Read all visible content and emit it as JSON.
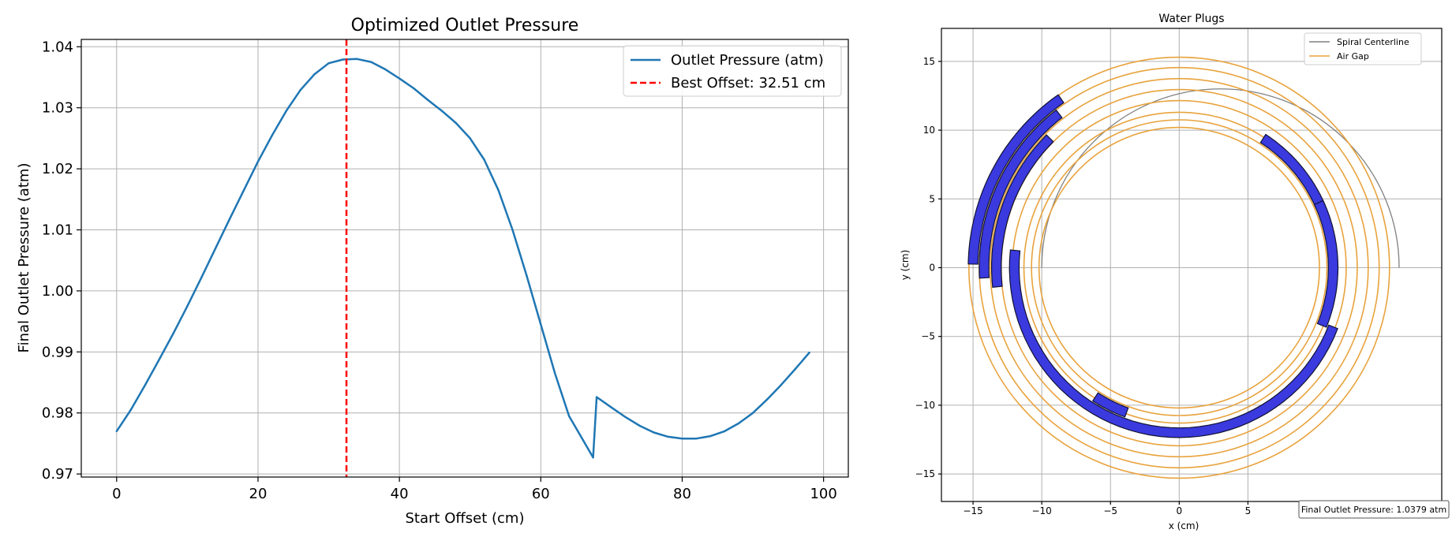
{
  "chart_data": [
    {
      "type": "line",
      "title": "Optimized Outlet Pressure",
      "xlabel": "Start Offset (cm)",
      "ylabel": "Final Outlet Pressure (atm)",
      "xlim": [
        -5,
        103.5
      ],
      "ylim": [
        0.9695,
        1.0412
      ],
      "xticks": [
        0,
        20,
        40,
        60,
        80,
        100
      ],
      "yticks": [
        0.97,
        0.98,
        0.99,
        1.0,
        1.01,
        1.02,
        1.03,
        1.04
      ],
      "ytick_labels": [
        "0.97",
        "0.98",
        "0.99",
        "1.00",
        "1.01",
        "1.02",
        "1.03",
        "1.04"
      ],
      "grid": true,
      "legend_position": "top-right",
      "series": [
        {
          "name": "Outlet Pressure (atm)",
          "color": "#1f77b4",
          "style": "solid",
          "x": [
            0,
            2,
            4,
            6,
            8,
            10,
            12,
            14,
            16,
            18,
            20,
            22,
            24,
            26,
            28,
            30,
            32,
            34,
            36,
            38,
            40,
            42,
            44,
            46,
            48,
            50,
            52,
            54,
            56,
            58,
            60,
            62,
            64,
            66,
            67.4,
            67.9,
            70,
            72,
            74,
            76,
            78,
            80,
            82,
            84,
            86,
            88,
            90,
            92,
            94,
            96,
            98
          ],
          "y": [
            0.977,
            0.9805,
            0.9845,
            0.9887,
            0.993,
            0.9975,
            1.0022,
            1.007,
            1.0118,
            1.0165,
            1.0212,
            1.0255,
            1.0295,
            1.0329,
            1.0355,
            1.0373,
            1.0379,
            1.038,
            1.0375,
            1.0363,
            1.0348,
            1.0332,
            1.0313,
            1.0295,
            1.0275,
            1.025,
            1.0215,
            1.0165,
            1.01,
            1.0025,
            0.9945,
            0.9865,
            0.9795,
            0.9755,
            0.9727,
            0.9826,
            0.9809,
            0.9793,
            0.9779,
            0.9768,
            0.9761,
            0.9758,
            0.9758,
            0.9762,
            0.977,
            0.9783,
            0.98,
            0.9822,
            0.9846,
            0.9872,
            0.9899
          ]
        },
        {
          "name": "Best Offset: 32.51 cm",
          "color": "#ff0000",
          "style": "dashed",
          "type": "vline",
          "x": 32.51
        }
      ]
    },
    {
      "type": "line",
      "title": "Water Plugs",
      "xlabel": "x (cm)",
      "ylabel": "y (cm)",
      "xlim": [
        -17.3,
        19.1
      ],
      "ylim": [
        -17.0,
        17.4
      ],
      "xticks": [
        -15,
        -10,
        -5,
        0,
        5
      ],
      "yticks": [
        -15,
        -10,
        -5,
        0,
        5,
        10,
        15
      ],
      "xtick_labels": [
        "−15",
        "−10",
        "−5",
        "0",
        "5"
      ],
      "ytick_labels": [
        "−15",
        "−10",
        "−5",
        "0",
        "5",
        "10",
        "15"
      ],
      "grid": true,
      "legend_position": "top-right",
      "series": [
        {
          "name": "Spiral Centerline",
          "color": "#808080",
          "kind": "semicircle",
          "center_x": 3.0,
          "radius": 13.0
        },
        {
          "name": "Air Gap",
          "color": "#e8a33d",
          "kind": "rings",
          "radii": [
            10.2,
            10.75,
            11.3,
            12.15,
            12.95,
            13.75,
            14.55,
            15.3
          ]
        }
      ],
      "water_plugs": {
        "fill": "#3a3adf",
        "stroke": "#111133",
        "arcs": [
          {
            "radius": 15.0,
            "start_deg": 125,
            "end_deg": 179
          },
          {
            "radius": 14.2,
            "start_deg": 128,
            "end_deg": 183
          },
          {
            "radius": 13.3,
            "start_deg": 135,
            "end_deg": 186
          },
          {
            "radius": 12.0,
            "start_deg": 174,
            "end_deg": 339
          },
          {
            "radius": 11.2,
            "start_deg": 237,
            "end_deg": 250
          },
          {
            "radius": 11.2,
            "start_deg": 57,
            "end_deg": 23
          },
          {
            "radius": 11.2,
            "start_deg": 25,
            "end_deg": -22
          }
        ]
      },
      "annotation": "Final Outlet Pressure: 1.0379 atm"
    }
  ]
}
